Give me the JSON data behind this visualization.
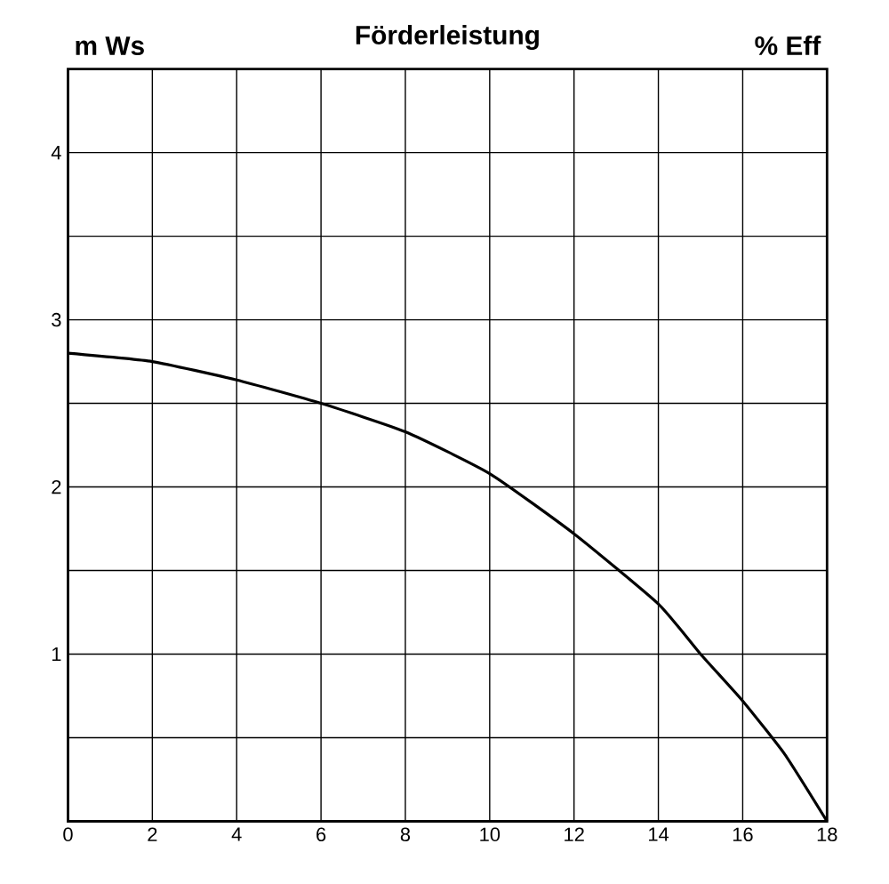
{
  "chart_data": {
    "type": "line",
    "title": "Förderleistung",
    "ylabel": "m Ws",
    "y2label": "% Eff",
    "x": [
      0,
      2,
      4,
      6,
      8,
      10,
      12,
      14,
      15,
      16,
      17,
      18
    ],
    "series": [
      {
        "color": "#000000",
        "values": [
          2.8,
          2.75,
          2.64,
          2.5,
          2.33,
          2.08,
          1.72,
          1.3,
          1.0,
          0.72,
          0.4,
          0
        ]
      }
    ],
    "xlim": [
      0,
      18
    ],
    "ylim": [
      0,
      4.5
    ],
    "xticks": [
      0,
      2,
      4,
      6,
      8,
      10,
      12,
      14,
      16,
      18
    ],
    "yticks": [
      {
        "value": 0.5,
        "label": null
      },
      1,
      {
        "value": 1.5,
        "label": null
      },
      2,
      {
        "value": 2.5,
        "label": null
      },
      3,
      {
        "value": 3.5,
        "label": null
      },
      4
    ],
    "grid": true,
    "marker": "none",
    "line_style": "solid"
  }
}
